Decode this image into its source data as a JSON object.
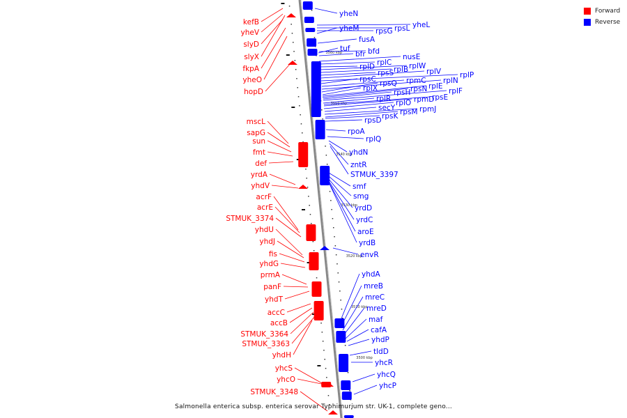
{
  "legend": {
    "items": [
      {
        "label": "Forward",
        "color": "#ff0000"
      },
      {
        "label": "Reverse",
        "color": "#0000ff"
      }
    ]
  },
  "caption": "Salmonella enterica subsp. enterica serovar Typhimurium str. UK-1, complete geno...",
  "colors": {
    "forward": "#ff0000",
    "reverse": "#0000ff",
    "axis": "#888888",
    "tick": "#111111"
  },
  "axis_ticks": [
    "3560 kbp",
    "3550 kbp",
    "3540 kbp",
    "3530 kbp",
    "3520 kbp",
    "3510 kbp",
    "3500 kbp"
  ],
  "genes_forward": [
    "kefB",
    "yheV",
    "slyD",
    "slyX",
    "fkpA",
    "yheO",
    "hopD",
    "mscL",
    "sapG",
    "sun",
    "fmt",
    "def",
    "yrdA",
    "yhdV",
    "acrF",
    "acrE",
    "STMUK_3374",
    "yhdU",
    "yhdJ",
    "fis",
    "yhdG",
    "prmA",
    "panF",
    "yhdT",
    "accC",
    "accB",
    "STMUK_3364",
    "STMUK_3363",
    "yhdH",
    "yhcS",
    "yhcO",
    "STMUK_3348"
  ],
  "genes_reverse": [
    "yheN",
    "yheL",
    "rpsL",
    "rpsG",
    "yheM",
    "fusA",
    "bfd",
    "tuf",
    "bfr",
    "nusE",
    "rplC",
    "rplD",
    "rplW",
    "rplB",
    "rpsS",
    "rplV",
    "rplP",
    "rpsC",
    "rpmC",
    "rplN",
    "rpsQ",
    "rplX",
    "rplE",
    "rpsN",
    "rpsH",
    "rplF",
    "rplR",
    "rpsE",
    "rpmD",
    "rplO",
    "secY",
    "rpmJ",
    "rpsM",
    "rpsK",
    "rpsD",
    "rpoA",
    "rplQ",
    "yhdN",
    "zntR",
    "STMUK_3397",
    "smf",
    "smg",
    "yrdD",
    "yrdC",
    "aroE",
    "yrdB",
    "envR",
    "yhdA",
    "mreB",
    "mreC",
    "mreD",
    "maf",
    "cafA",
    "yhdP",
    "tldD",
    "yhcR",
    "yhcQ",
    "yhcP"
  ]
}
